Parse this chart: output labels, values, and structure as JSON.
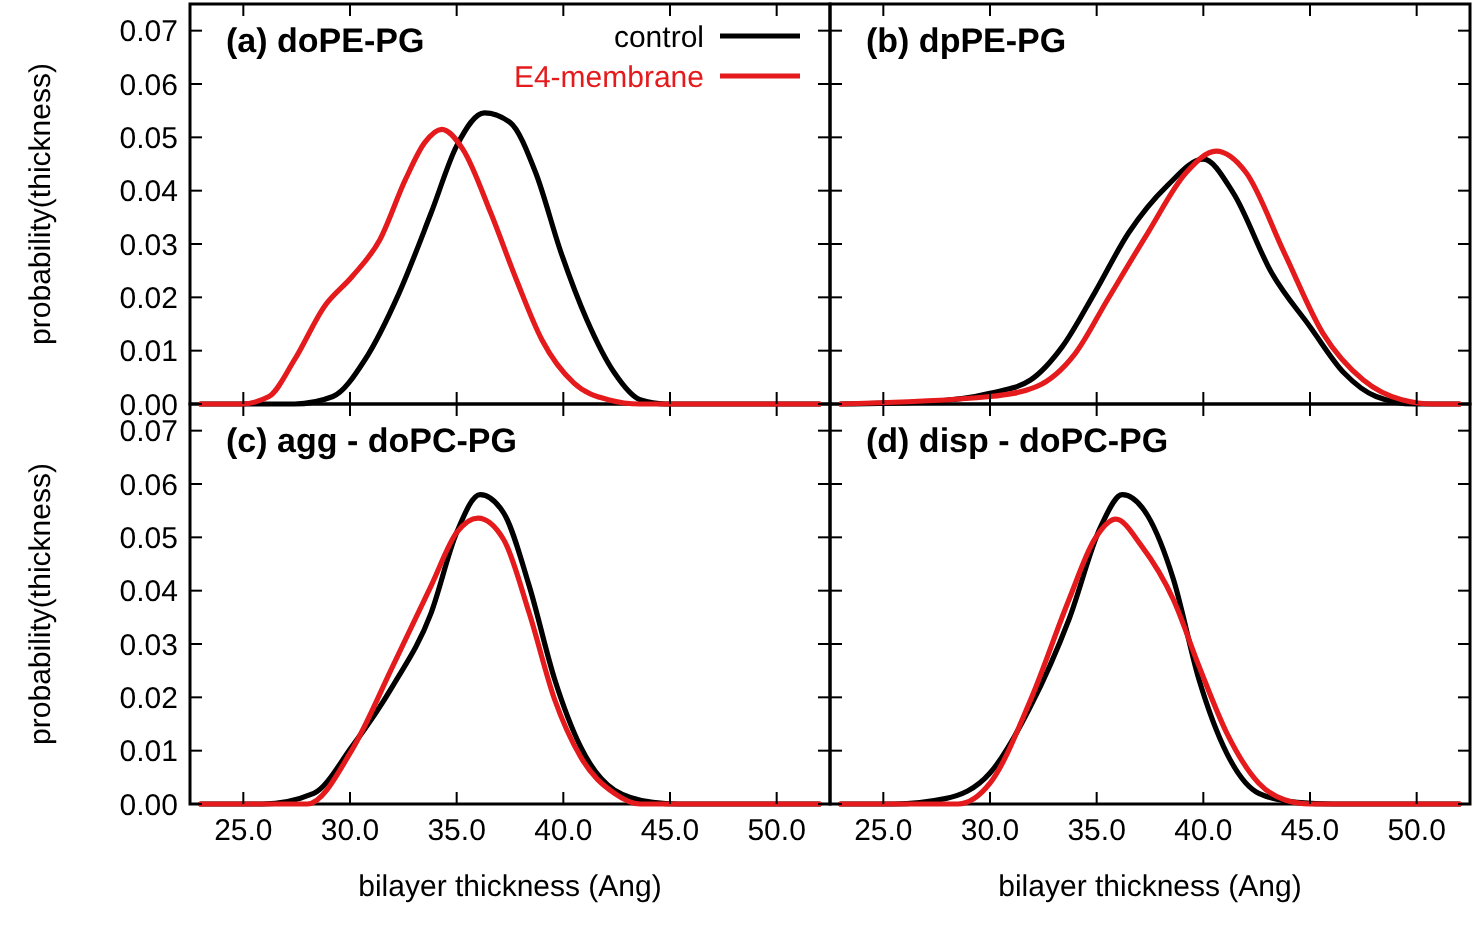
{
  "chart_data": [
    {
      "type": "line",
      "title": "(a) doPE-PG",
      "ylabel": "probability(thickness)",
      "xlim": [
        22.5,
        52.5
      ],
      "ylim": [
        0,
        0.075
      ],
      "xticks": [
        {
          "value": 25,
          "label": null
        },
        {
          "value": 30,
          "label": null
        },
        {
          "value": 35,
          "label": null
        },
        {
          "value": 40,
          "label": null
        },
        {
          "value": 45,
          "label": null
        },
        {
          "value": 50,
          "label": null
        }
      ],
      "yticks": [
        {
          "value": 0,
          "label": "0.00"
        },
        {
          "value": 0.01,
          "label": "0.01"
        },
        {
          "value": 0.02,
          "label": "0.02"
        },
        {
          "value": 0.03,
          "label": "0.03"
        },
        {
          "value": 0.04,
          "label": "0.04"
        },
        {
          "value": 0.05,
          "label": "0.05"
        },
        {
          "value": 0.06,
          "label": "0.06"
        },
        {
          "value": 0.07,
          "label": "0.07"
        }
      ],
      "tick_labels": "y",
      "legend": "top right",
      "grid": false,
      "marker": "none",
      "line_style": "solid",
      "series": [
        {
          "name": "control",
          "color": "#000000",
          "x": [
            23.0,
            27.4,
            29.2,
            30.7,
            32.3,
            33.8,
            35.0,
            36.3,
            37.5,
            38.7,
            39.9,
            41.1,
            42.4,
            43.6,
            44.8,
            52.0
          ],
          "values": [
            0,
            0,
            0.0014,
            0.0083,
            0.0208,
            0.0358,
            0.0484,
            0.0546,
            0.0528,
            0.0434,
            0.0283,
            0.0158,
            0.0058,
            0.0008,
            0,
            0
          ]
        },
        {
          "name": "E4-membrane",
          "color": "#e41a1c",
          "x": [
            23.0,
            24.9,
            26.2,
            27.4,
            28.8,
            30.1,
            31.4,
            32.6,
            33.5,
            34.3,
            35.3,
            36.6,
            37.8,
            39.0,
            40.5,
            42.1,
            43.6,
            52.0
          ],
          "values": [
            0,
            0,
            0.0014,
            0.0083,
            0.0183,
            0.0239,
            0.0308,
            0.0421,
            0.049,
            0.0515,
            0.0477,
            0.0358,
            0.0233,
            0.012,
            0.0039,
            0.0008,
            0,
            0
          ]
        }
      ]
    },
    {
      "type": "line",
      "title": "(b) dpPE-PG",
      "xlim": [
        22.5,
        52.5
      ],
      "ylim": [
        0,
        0.075
      ],
      "xticks": [
        {
          "value": 25,
          "label": null
        },
        {
          "value": 30,
          "label": null
        },
        {
          "value": 35,
          "label": null
        },
        {
          "value": 40,
          "label": null
        },
        {
          "value": 45,
          "label": null
        },
        {
          "value": 50,
          "label": null
        }
      ],
      "yticks": [
        {
          "value": 0,
          "label": null
        },
        {
          "value": 0.01,
          "label": null
        },
        {
          "value": 0.02,
          "label": null
        },
        {
          "value": 0.03,
          "label": null
        },
        {
          "value": 0.04,
          "label": null
        },
        {
          "value": 0.05,
          "label": null
        },
        {
          "value": 0.06,
          "label": null
        },
        {
          "value": 0.07,
          "label": null
        }
      ],
      "tick_labels": false,
      "grid": false,
      "marker": "none",
      "line_style": "solid",
      "series": [
        {
          "color": "#000000",
          "x": [
            23.0,
            27.0,
            30.0,
            31.9,
            33.4,
            34.9,
            36.5,
            38.3,
            40.0,
            41.4,
            43.2,
            45.0,
            46.6,
            48.1,
            49.9,
            52.0
          ],
          "values": [
            0,
            0.0004,
            0.002,
            0.0045,
            0.0108,
            0.0208,
            0.0321,
            0.0409,
            0.0459,
            0.0396,
            0.0246,
            0.0145,
            0.0058,
            0.0014,
            0,
            0
          ]
        },
        {
          "color": "#e41a1c",
          "x": [
            23.0,
            30.0,
            32.2,
            34.0,
            35.5,
            37.4,
            39.2,
            40.6,
            42.0,
            43.8,
            45.6,
            47.5,
            49.3,
            50.8,
            52.0
          ],
          "values": [
            0,
            0.0014,
            0.0033,
            0.0095,
            0.0195,
            0.0321,
            0.0434,
            0.0474,
            0.0434,
            0.0283,
            0.0133,
            0.0045,
            0.0008,
            0,
            0
          ]
        }
      ]
    },
    {
      "type": "line",
      "title": "(c) agg - doPC-PG",
      "xlabel": "bilayer thickness (Ang)",
      "ylabel": "probability(thickness)",
      "xlim": [
        22.5,
        52.5
      ],
      "ylim": [
        0,
        0.075
      ],
      "xticks": [
        {
          "value": 25,
          "label": "25.0"
        },
        {
          "value": 30,
          "label": "30.0"
        },
        {
          "value": 35,
          "label": "35.0"
        },
        {
          "value": 40,
          "label": "40.0"
        },
        {
          "value": 45,
          "label": "45.0"
        },
        {
          "value": 50,
          "label": "50.0"
        }
      ],
      "yticks": [
        {
          "value": 0,
          "label": "0.00"
        },
        {
          "value": 0.01,
          "label": "0.01"
        },
        {
          "value": 0.02,
          "label": "0.02"
        },
        {
          "value": 0.03,
          "label": "0.03"
        },
        {
          "value": 0.04,
          "label": "0.04"
        },
        {
          "value": 0.05,
          "label": "0.05"
        },
        {
          "value": 0.06,
          "label": "0.06"
        },
        {
          "value": 0.07,
          "label": "0.07"
        }
      ],
      "grid": false,
      "marker": "none",
      "line_style": "solid",
      "series": [
        {
          "color": "#000000",
          "x": [
            23.0,
            25.9,
            28.3,
            30.1,
            32.0,
            33.8,
            35.0,
            36.1,
            37.2,
            38.4,
            39.6,
            40.8,
            42.4,
            44.2,
            45.4,
            52.0
          ],
          "values": [
            0,
            0,
            0.002,
            0.0108,
            0.0221,
            0.0358,
            0.0509,
            0.058,
            0.0546,
            0.0409,
            0.0233,
            0.0108,
            0.0026,
            0.0003,
            0,
            0
          ]
        },
        {
          "color": "#e41a1c",
          "x": [
            23.0,
            28.0,
            30.1,
            32.0,
            33.8,
            35.0,
            36.0,
            37.2,
            38.4,
            39.6,
            40.8,
            42.4,
            43.6,
            52.0
          ],
          "values": [
            0,
            0,
            0.0102,
            0.0258,
            0.0409,
            0.0509,
            0.0536,
            0.0496,
            0.0358,
            0.0195,
            0.0089,
            0.002,
            0,
            0
          ]
        }
      ]
    },
    {
      "type": "line",
      "title": "(d) disp - doPC-PG",
      "xlabel": "bilayer thickness (Ang)",
      "xlim": [
        22.5,
        52.5
      ],
      "ylim": [
        0,
        0.075
      ],
      "xticks": [
        {
          "value": 25,
          "label": "25.0"
        },
        {
          "value": 30,
          "label": "30.0"
        },
        {
          "value": 35,
          "label": "35.0"
        },
        {
          "value": 40,
          "label": "40.0"
        },
        {
          "value": 45,
          "label": "45.0"
        },
        {
          "value": 50,
          "label": "50.0"
        }
      ],
      "yticks": [
        {
          "value": 0,
          "label": null
        },
        {
          "value": 0.01,
          "label": null
        },
        {
          "value": 0.02,
          "label": null
        },
        {
          "value": 0.03,
          "label": null
        },
        {
          "value": 0.04,
          "label": null
        },
        {
          "value": 0.05,
          "label": null
        },
        {
          "value": 0.06,
          "label": null
        },
        {
          "value": 0.07,
          "label": null
        }
      ],
      "tick_labels": "x",
      "grid": false,
      "marker": "none",
      "line_style": "solid",
      "series": [
        {
          "color": "#000000",
          "x": [
            23.0,
            25.5,
            27.9,
            30.0,
            31.9,
            33.7,
            35.2,
            36.2,
            37.4,
            38.6,
            39.8,
            41.1,
            42.6,
            44.4,
            46.1,
            52.0
          ],
          "values": [
            0,
            0,
            0.001,
            0.0058,
            0.0183,
            0.0346,
            0.0521,
            0.058,
            0.054,
            0.0421,
            0.0233,
            0.0095,
            0.002,
            0.0003,
            0,
            0
          ]
        },
        {
          "color": "#e41a1c",
          "x": [
            23.0,
            28.5,
            30.0,
            31.9,
            33.7,
            34.9,
            35.9,
            37.1,
            38.6,
            39.8,
            41.1,
            42.6,
            43.8,
            45.0,
            52.0
          ],
          "values": [
            0,
            0,
            0.0039,
            0.0195,
            0.0383,
            0.0496,
            0.0534,
            0.0484,
            0.0383,
            0.0258,
            0.0133,
            0.0039,
            0.0008,
            0,
            0
          ]
        }
      ]
    }
  ]
}
